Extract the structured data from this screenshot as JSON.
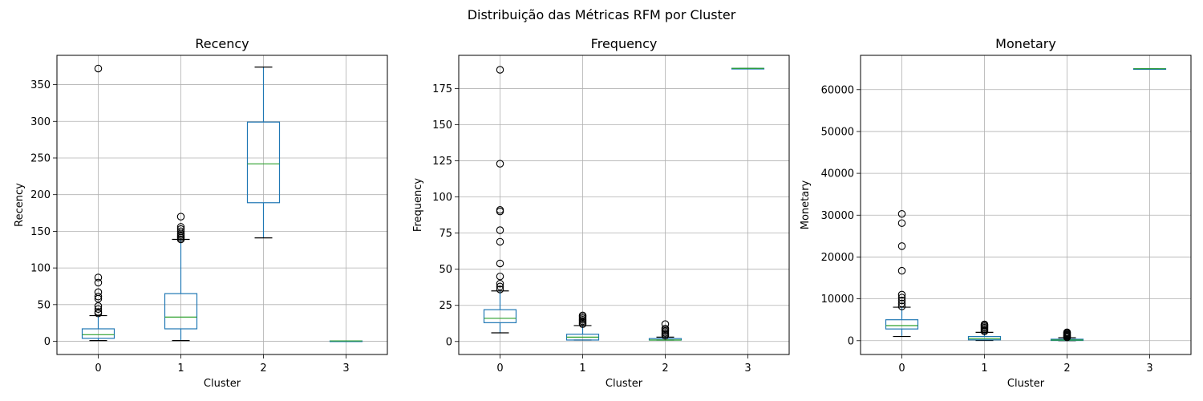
{
  "figure": {
    "title": "Distribuição das Métricas RFM por Cluster"
  },
  "chart_data": [
    {
      "type": "box",
      "title": "Recency",
      "xlabel": "Cluster",
      "ylabel": "Recency",
      "categories": [
        "0",
        "1",
        "2",
        "3"
      ],
      "ylim": [
        -18,
        390
      ],
      "yticks": [
        0,
        50,
        100,
        150,
        200,
        250,
        300,
        350
      ],
      "ytick_labels": [
        "0",
        "50",
        "100",
        "150",
        "200",
        "250",
        "300",
        "350"
      ],
      "grid": true,
      "boxes": [
        {
          "category": "0",
          "whislo": 1,
          "q1": 4,
          "med": 9,
          "q3": 17,
          "whishi": 35,
          "fliers": [
            38,
            40,
            44,
            48,
            58,
            61,
            67,
            80,
            87,
            372
          ]
        },
        {
          "category": "1",
          "whislo": 1,
          "q1": 17,
          "med": 33,
          "q3": 65,
          "whishi": 139,
          "fliers": [
            139,
            141,
            143,
            145,
            147,
            150,
            153,
            156,
            170
          ]
        },
        {
          "category": "2",
          "whislo": 141,
          "q1": 189,
          "med": 242,
          "q3": 299,
          "whishi": 374,
          "fliers": []
        },
        {
          "category": "3",
          "whislo": 0.5,
          "q1": 0.5,
          "med": 0.5,
          "q3": 0.5,
          "whishi": 0.5,
          "fliers": []
        }
      ],
      "colors": {
        "box": "#1f77b4",
        "median": "#2ca02c",
        "whisker": "#000000",
        "flier": "#000000",
        "grid": "#b0b0b0"
      }
    },
    {
      "type": "box",
      "title": "Frequency",
      "xlabel": "Cluster",
      "ylabel": "Frequency",
      "categories": [
        "0",
        "1",
        "2",
        "3"
      ],
      "ylim": [
        -9,
        198
      ],
      "yticks": [
        0,
        25,
        50,
        75,
        100,
        125,
        150,
        175
      ],
      "ytick_labels": [
        "0",
        "25",
        "50",
        "75",
        "100",
        "125",
        "150",
        "175"
      ],
      "grid": true,
      "boxes": [
        {
          "category": "0",
          "whislo": 6,
          "q1": 13,
          "med": 16,
          "q3": 22,
          "whishi": 35,
          "fliers": [
            36,
            38,
            40,
            45,
            54,
            69,
            77,
            90,
            91,
            123,
            188
          ]
        },
        {
          "category": "1",
          "whislo": 1,
          "q1": 1,
          "med": 3,
          "q3": 5,
          "whishi": 11,
          "fliers": [
            12,
            13,
            14,
            15,
            16,
            17,
            18
          ]
        },
        {
          "category": "2",
          "whislo": 1,
          "q1": 1,
          "med": 1,
          "q3": 2,
          "whishi": 3,
          "fliers": [
            4,
            5,
            6,
            7,
            8,
            9,
            12
          ]
        },
        {
          "category": "3",
          "whislo": 189,
          "q1": 189,
          "med": 189,
          "q3": 189,
          "whishi": 189,
          "fliers": []
        }
      ],
      "colors": {
        "box": "#1f77b4",
        "median": "#2ca02c",
        "whisker": "#000000",
        "flier": "#000000",
        "grid": "#b0b0b0"
      }
    },
    {
      "type": "box",
      "title": "Monetary",
      "xlabel": "Cluster",
      "ylabel": "Monetary",
      "categories": [
        "0",
        "1",
        "2",
        "3"
      ],
      "ylim": [
        -3300,
        68200
      ],
      "yticks": [
        0,
        10000,
        20000,
        30000,
        40000,
        50000,
        60000
      ],
      "ytick_labels": [
        "0",
        "10000",
        "20000",
        "30000",
        "40000",
        "50000",
        "60000"
      ],
      "grid": true,
      "boxes": [
        {
          "category": "0",
          "whislo": 1000,
          "q1": 2800,
          "med": 3600,
          "q3": 5000,
          "whishi": 8000,
          "fliers": [
            8200,
            8900,
            9600,
            10300,
            11000,
            16700,
            22600,
            28100,
            30300
          ]
        },
        {
          "category": "1",
          "whislo": 50,
          "q1": 200,
          "med": 500,
          "q3": 1000,
          "whishi": 2000,
          "fliers": [
            2200,
            2500,
            2800,
            3100,
            3400,
            3700,
            3900
          ]
        },
        {
          "category": "2",
          "whislo": 0,
          "q1": 50,
          "med": 150,
          "q3": 350,
          "whishi": 700,
          "fliers": [
            800,
            1000,
            1200,
            1400,
            1600,
            1800,
            2000
          ]
        },
        {
          "category": "3",
          "whislo": 65000,
          "q1": 65000,
          "med": 65000,
          "q3": 65000,
          "whishi": 65000,
          "fliers": []
        }
      ],
      "colors": {
        "box": "#1f77b4",
        "median": "#2ca02c",
        "whisker": "#000000",
        "flier": "#000000",
        "grid": "#b0b0b0"
      }
    }
  ]
}
